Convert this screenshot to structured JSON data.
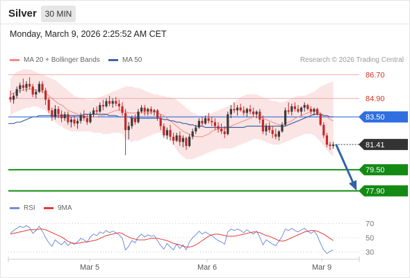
{
  "header": {
    "instrument": "Silver",
    "timeframe": "30 MIN",
    "datetime": "Monday, March 9, 2026 2:25:52 AM CET"
  },
  "legend": {
    "ma20_label": "MA 20 + Bollinger Bands",
    "ma50_label": "MA 50",
    "rsi_label": "RSI",
    "ma9_label": "9MA",
    "copyright": "Research © 2026 Trading Central"
  },
  "colors": {
    "candle_up": "#3a3a3a",
    "candle_down": "#c62828",
    "bollinger_fill": "#fbe3e3",
    "ma20": "#f28b82",
    "ma50": "#3d62a8",
    "level_line": "#f3a7a7",
    "pivot": "#2f6fe0",
    "last_price": "#333333",
    "support": "#138a13",
    "arrow": "#3162a8",
    "rsi": "#6f8fd8",
    "rsi_ma": "#e53935"
  },
  "chart_data": [
    {
      "type": "candlestick",
      "title": "Silver 30 MIN",
      "x_labels": [
        "Mar 5",
        "Mar 6",
        "Mar 9"
      ],
      "ylim": [
        77.3,
        87.3
      ],
      "levels": [
        {
          "value": 86.7,
          "label": "86.70",
          "kind": "resistance"
        },
        {
          "value": 84.9,
          "label": "84.90",
          "kind": "resistance"
        },
        {
          "value": 83.5,
          "label": "83.50",
          "kind": "pivot"
        },
        {
          "value": 81.41,
          "label": "81.41",
          "kind": "last"
        },
        {
          "value": 79.5,
          "label": "79.50",
          "kind": "support"
        },
        {
          "value": 77.9,
          "label": "77.90",
          "kind": "support"
        }
      ],
      "forecast": {
        "from": 81.41,
        "to": 77.9
      },
      "ohlc": [
        [
          85.0,
          85.5,
          84.6,
          84.8
        ],
        [
          84.8,
          85.3,
          84.5,
          85.1
        ],
        [
          85.1,
          85.8,
          84.9,
          85.6
        ],
        [
          85.6,
          86.1,
          85.3,
          85.9
        ],
        [
          85.9,
          86.4,
          85.5,
          85.7
        ],
        [
          85.7,
          86.2,
          85.4,
          86.0
        ],
        [
          86.0,
          86.5,
          85.6,
          85.8
        ],
        [
          85.8,
          86.0,
          85.0,
          85.2
        ],
        [
          85.2,
          85.6,
          84.9,
          85.4
        ],
        [
          85.4,
          86.2,
          85.3,
          86.0
        ],
        [
          86.0,
          86.2,
          85.3,
          85.5
        ],
        [
          85.5,
          85.7,
          84.4,
          84.8
        ],
        [
          84.8,
          85.0,
          83.8,
          84.0
        ],
        [
          84.0,
          84.2,
          83.2,
          83.5
        ],
        [
          83.5,
          84.4,
          83.3,
          84.1
        ],
        [
          84.1,
          84.3,
          83.4,
          83.7
        ],
        [
          83.7,
          84.0,
          83.1,
          83.4
        ],
        [
          83.4,
          83.9,
          83.2,
          83.7
        ],
        [
          83.7,
          83.9,
          82.9,
          83.1
        ],
        [
          83.1,
          83.5,
          82.7,
          83.3
        ],
        [
          83.3,
          83.6,
          82.8,
          83.0
        ],
        [
          83.0,
          83.4,
          82.6,
          83.2
        ],
        [
          83.2,
          83.8,
          83.0,
          83.6
        ],
        [
          83.6,
          84.0,
          83.2,
          83.4
        ],
        [
          83.4,
          83.7,
          82.9,
          83.1
        ],
        [
          83.1,
          83.9,
          83.0,
          83.7
        ],
        [
          83.7,
          84.2,
          83.5,
          84.0
        ],
        [
          84.0,
          84.3,
          83.7,
          83.9
        ],
        [
          83.9,
          84.6,
          83.8,
          84.4
        ],
        [
          84.4,
          84.8,
          84.0,
          84.3
        ],
        [
          84.3,
          84.9,
          84.2,
          84.7
        ],
        [
          84.7,
          85.1,
          84.3,
          84.5
        ],
        [
          84.5,
          84.9,
          84.2,
          84.7
        ],
        [
          84.7,
          85.0,
          84.3,
          84.5
        ],
        [
          84.5,
          84.8,
          84.0,
          84.3
        ],
        [
          84.3,
          84.6,
          83.6,
          83.8
        ],
        [
          83.8,
          84.1,
          80.6,
          82.5
        ],
        [
          82.5,
          83.1,
          81.8,
          82.8
        ],
        [
          82.8,
          83.6,
          82.6,
          83.4
        ],
        [
          83.4,
          83.7,
          82.9,
          83.1
        ],
        [
          83.1,
          84.1,
          83.0,
          83.9
        ],
        [
          83.9,
          84.4,
          83.8,
          84.2
        ],
        [
          84.2,
          84.4,
          83.6,
          83.9
        ],
        [
          83.9,
          84.2,
          83.6,
          84.1
        ],
        [
          84.1,
          84.3,
          83.7,
          83.9
        ],
        [
          83.9,
          84.1,
          83.6,
          84.0
        ],
        [
          84.0,
          84.1,
          83.2,
          83.4
        ],
        [
          83.4,
          83.7,
          82.5,
          82.8
        ],
        [
          82.8,
          83.0,
          81.9,
          82.1
        ],
        [
          82.1,
          82.7,
          81.8,
          82.5
        ],
        [
          82.5,
          82.9,
          81.7,
          82.0
        ],
        [
          82.0,
          82.3,
          81.4,
          81.7
        ],
        [
          81.7,
          82.3,
          81.6,
          82.1
        ],
        [
          82.1,
          82.4,
          81.3,
          81.6
        ],
        [
          81.6,
          82.1,
          81.2,
          81.9
        ],
        [
          81.9,
          82.0,
          81.0,
          81.3
        ],
        [
          81.3,
          82.2,
          81.2,
          82.0
        ],
        [
          82.0,
          82.6,
          81.8,
          82.4
        ],
        [
          82.4,
          82.9,
          82.2,
          82.7
        ],
        [
          82.7,
          83.4,
          82.6,
          83.2
        ],
        [
          83.2,
          83.5,
          82.8,
          83.0
        ],
        [
          83.0,
          83.6,
          82.9,
          83.4
        ],
        [
          83.4,
          83.8,
          83.0,
          83.2
        ],
        [
          83.2,
          83.5,
          82.8,
          83.1
        ],
        [
          83.1,
          83.4,
          82.5,
          82.8
        ],
        [
          82.8,
          83.1,
          82.3,
          82.6
        ],
        [
          82.6,
          83.0,
          82.2,
          82.4
        ],
        [
          82.4,
          82.8,
          81.9,
          82.2
        ],
        [
          82.2,
          83.9,
          82.1,
          83.7
        ],
        [
          83.7,
          84.4,
          83.4,
          84.1
        ],
        [
          84.1,
          84.6,
          83.8,
          84.0
        ],
        [
          84.0,
          84.4,
          83.6,
          84.2
        ],
        [
          84.2,
          84.5,
          83.9,
          84.0
        ],
        [
          84.0,
          84.3,
          83.6,
          83.8
        ],
        [
          83.8,
          84.2,
          83.5,
          84.1
        ],
        [
          84.1,
          84.4,
          83.7,
          83.9
        ],
        [
          83.9,
          84.2,
          83.5,
          83.7
        ],
        [
          83.7,
          84.0,
          83.4,
          83.9
        ],
        [
          83.9,
          84.1,
          83.0,
          83.3
        ],
        [
          83.3,
          83.6,
          82.2,
          82.4
        ],
        [
          82.4,
          83.0,
          82.1,
          82.8
        ],
        [
          82.8,
          83.1,
          82.3,
          82.5
        ],
        [
          82.5,
          82.8,
          81.9,
          82.2
        ],
        [
          82.2,
          82.6,
          81.8,
          82.0
        ],
        [
          82.0,
          82.5,
          81.7,
          82.4
        ],
        [
          82.4,
          83.1,
          82.3,
          82.9
        ],
        [
          82.9,
          84.2,
          82.8,
          84.0
        ],
        [
          84.0,
          84.6,
          83.7,
          83.9
        ],
        [
          83.9,
          84.5,
          83.6,
          84.3
        ],
        [
          84.3,
          84.6,
          83.9,
          84.1
        ],
        [
          84.1,
          84.4,
          83.8,
          83.9
        ],
        [
          83.9,
          84.3,
          83.6,
          84.2
        ],
        [
          84.2,
          84.6,
          83.9,
          84.4
        ],
        [
          84.4,
          84.5,
          84.0,
          84.1
        ],
        [
          84.1,
          84.3,
          83.7,
          83.9
        ],
        [
          83.9,
          84.2,
          83.6,
          84.1
        ],
        [
          84.1,
          84.2,
          83.6,
          83.7
        ],
        [
          83.7,
          83.8,
          82.8,
          82.9
        ],
        [
          82.9,
          83.1,
          81.9,
          82.1
        ],
        [
          82.1,
          82.3,
          81.2,
          81.4
        ],
        [
          81.4,
          81.6,
          81.0,
          81.3
        ],
        [
          81.3,
          81.6,
          81.1,
          81.41
        ]
      ],
      "ma20": [
        85.2,
        85.3,
        85.4,
        85.5,
        85.5,
        85.6,
        85.6,
        85.6,
        85.5,
        85.5,
        85.4,
        85.3,
        85.1,
        84.9,
        84.7,
        84.5,
        84.4,
        84.2,
        84.0,
        83.9,
        83.8,
        83.7,
        83.6,
        83.6,
        83.5,
        83.5,
        83.5,
        83.5,
        83.6,
        83.6,
        83.7,
        83.8,
        83.9,
        84.0,
        84.0,
        84.0,
        83.9,
        83.8,
        83.8,
        83.8,
        83.8,
        83.8,
        83.8,
        83.8,
        83.8,
        83.9,
        83.8,
        83.7,
        83.6,
        83.4,
        83.2,
        83.0,
        82.8,
        82.6,
        82.4,
        82.3,
        82.2,
        82.1,
        82.0,
        82.0,
        82.0,
        82.1,
        82.2,
        82.4,
        82.5,
        82.6,
        82.6,
        82.6,
        82.7,
        82.8,
        82.9,
        83.0,
        83.1,
        83.2,
        83.3,
        83.4,
        83.5,
        83.5,
        83.5,
        83.4,
        83.3,
        83.2,
        83.1,
        83.0,
        82.9,
        82.9,
        83.0,
        83.1,
        83.2,
        83.4,
        83.5,
        83.6,
        83.7,
        83.8,
        83.9,
        84.0,
        83.9,
        83.8,
        83.6,
        83.5,
        83.3,
        83.2
      ],
      "ma50": [
        83.0,
        83.0,
        83.1,
        83.1,
        83.2,
        83.3,
        83.4,
        83.5,
        83.5,
        83.6,
        83.6,
        83.6,
        83.6,
        83.6,
        83.6,
        83.6,
        83.6,
        83.6,
        83.6,
        83.6,
        83.6,
        83.6,
        83.6,
        83.7,
        83.7,
        83.7,
        83.7,
        83.7,
        83.7,
        83.7,
        83.7,
        83.6,
        83.6,
        83.6,
        83.5,
        83.5,
        83.5,
        83.5,
        83.4,
        83.4,
        83.4,
        83.4,
        83.4,
        83.4,
        83.4,
        83.4,
        83.4,
        83.4,
        83.3,
        83.3,
        83.2,
        83.2,
        83.1,
        83.1,
        83.0,
        83.0,
        82.9,
        82.9,
        82.8,
        82.8,
        82.8,
        82.7,
        82.7,
        82.7,
        82.7,
        82.7,
        82.7,
        82.7,
        82.7,
        82.7,
        82.7,
        82.7,
        82.7,
        82.7,
        82.8,
        82.8,
        82.8,
        82.8,
        82.8,
        82.8,
        82.8,
        82.8,
        82.8,
        82.8,
        82.8,
        82.8,
        82.8,
        82.9,
        83.0,
        83.1,
        83.2,
        83.3,
        83.4,
        83.5,
        83.6,
        83.7,
        83.7,
        83.7,
        83.6,
        83.6,
        83.5,
        83.5
      ],
      "bb_upper": [
        86.4,
        86.7,
        86.9,
        87.0,
        87.1,
        87.1,
        87.1,
        87.0,
        86.9,
        86.8,
        86.7,
        86.6,
        86.5,
        86.4,
        86.3,
        86.1,
        85.9,
        85.7,
        85.5,
        85.3,
        85.1,
        85.0,
        84.9,
        84.9,
        84.8,
        84.8,
        84.8,
        84.9,
        85.0,
        85.1,
        85.2,
        85.3,
        85.4,
        85.5,
        85.6,
        85.7,
        85.8,
        85.8,
        85.8,
        85.7,
        85.7,
        85.6,
        85.5,
        85.4,
        85.3,
        85.2,
        85.2,
        85.1,
        85.1,
        85.0,
        85.0,
        84.9,
        84.8,
        84.6,
        84.4,
        84.2,
        84.0,
        83.8,
        83.7,
        83.6,
        83.6,
        83.6,
        83.7,
        83.8,
        83.9,
        84.0,
        84.1,
        84.2,
        84.3,
        84.4,
        84.6,
        84.8,
        85.0,
        85.1,
        85.2,
        85.2,
        85.2,
        85.2,
        85.1,
        85.0,
        84.9,
        84.8,
        84.7,
        84.7,
        84.6,
        84.6,
        84.7,
        84.8,
        84.9,
        85.0,
        85.1,
        85.1,
        85.1,
        85.2,
        85.3,
        85.4,
        85.6,
        85.8,
        85.9,
        86.0,
        86.1,
        86.2
      ],
      "bb_lower": [
        83.6,
        83.8,
        83.9,
        84.0,
        84.1,
        84.2,
        84.2,
        84.3,
        84.3,
        84.2,
        84.1,
        84.0,
        83.7,
        83.4,
        83.1,
        82.9,
        82.8,
        82.6,
        82.5,
        82.4,
        82.4,
        82.4,
        82.4,
        82.4,
        82.4,
        82.4,
        82.3,
        82.3,
        82.3,
        82.2,
        82.2,
        82.2,
        82.3,
        82.3,
        82.3,
        82.2,
        81.8,
        81.7,
        81.6,
        81.7,
        81.7,
        81.8,
        81.9,
        82.0,
        82.1,
        82.2,
        82.3,
        82.3,
        82.2,
        82.0,
        81.7,
        81.4,
        81.0,
        80.7,
        80.5,
        80.3,
        80.3,
        80.3,
        80.4,
        80.5,
        80.6,
        80.7,
        80.8,
        80.9,
        81.0,
        81.1,
        81.1,
        81.1,
        81.1,
        81.1,
        81.2,
        81.3,
        81.4,
        81.5,
        81.6,
        81.7,
        81.8,
        81.8,
        81.8,
        81.7,
        81.6,
        81.5,
        81.4,
        81.4,
        81.4,
        81.5,
        81.6,
        81.7,
        81.8,
        81.9,
        82.0,
        82.1,
        82.2,
        82.2,
        82.2,
        82.1,
        81.9,
        81.6,
        81.3,
        81.0,
        80.7,
        80.5
      ]
    },
    {
      "type": "line",
      "title": "RSI",
      "y_ticks": [
        70,
        50,
        30
      ],
      "ylim": [
        20,
        80
      ],
      "series": [
        {
          "name": "RSI",
          "values": [
            56,
            60,
            63,
            66,
            64,
            67,
            64,
            56,
            60,
            66,
            59,
            50,
            43,
            38,
            47,
            43,
            40,
            45,
            39,
            43,
            41,
            44,
            49,
            47,
            44,
            51,
            55,
            53,
            58,
            56,
            60,
            57,
            59,
            57,
            54,
            49,
            33,
            38,
            46,
            43,
            51,
            55,
            51,
            54,
            52,
            53,
            46,
            39,
            34,
            42,
            37,
            33,
            41,
            35,
            40,
            33,
            44,
            50,
            54,
            59,
            55,
            58,
            55,
            53,
            49,
            46,
            44,
            41,
            58,
            62,
            60,
            62,
            60,
            57,
            61,
            58,
            55,
            59,
            51,
            40,
            47,
            44,
            41,
            39,
            45,
            52,
            62,
            60,
            63,
            60,
            58,
            61,
            63,
            59,
            56,
            59,
            53,
            42,
            33,
            28,
            31,
            33
          ]
        },
        {
          "name": "9MA",
          "values": [
            55,
            56,
            57,
            58,
            59,
            60,
            61,
            61,
            61,
            62,
            62,
            61,
            59,
            57,
            55,
            53,
            51,
            48,
            45,
            43,
            42,
            42,
            43,
            44,
            44,
            45,
            46,
            47,
            49,
            51,
            53,
            54,
            55,
            56,
            57,
            56,
            53,
            51,
            49,
            48,
            47,
            47,
            47,
            48,
            49,
            49,
            49,
            48,
            47,
            46,
            44,
            42,
            41,
            40,
            38,
            37,
            37,
            38,
            40,
            43,
            46,
            49,
            52,
            54,
            55,
            55,
            54,
            53,
            52,
            52,
            52,
            53,
            54,
            55,
            56,
            57,
            58,
            58,
            57,
            55,
            53,
            52,
            50,
            48,
            46,
            45,
            46,
            48,
            50,
            52,
            54,
            56,
            58,
            59,
            60,
            60,
            59,
            57,
            55,
            52,
            49,
            46
          ]
        }
      ]
    }
  ]
}
